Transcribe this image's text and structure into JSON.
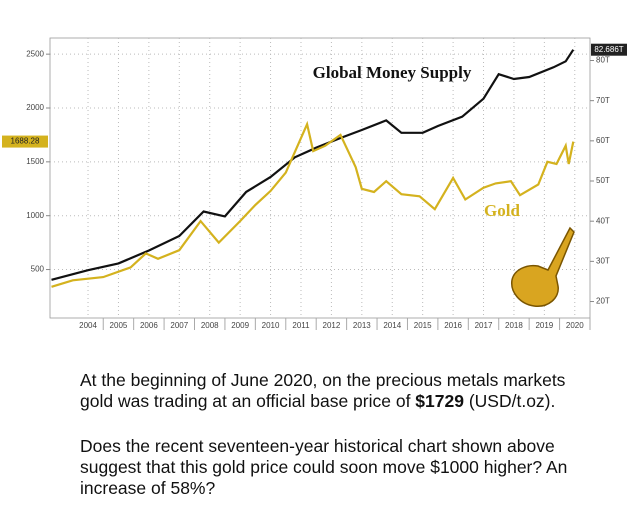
{
  "chart_data": {
    "type": "line",
    "x_ticks_note": null,
    "xlim": [
      2003.25,
      2021
    ],
    "xticks": [
      {
        "value": 2004.5,
        "label": "2004"
      },
      {
        "value": 2005.5,
        "label": "2005"
      },
      {
        "value": 2006.5,
        "label": "2006"
      },
      {
        "value": 2007.5,
        "label": "2007"
      },
      {
        "value": 2008.5,
        "label": "2008"
      },
      {
        "value": 2009.5,
        "label": "2009"
      },
      {
        "value": 2010.5,
        "label": "2010"
      },
      {
        "value": 2011.5,
        "label": "2011"
      },
      {
        "value": 2012.5,
        "label": "2012"
      },
      {
        "value": 2013.5,
        "label": "2013"
      },
      {
        "value": 2014.5,
        "label": "2014"
      },
      {
        "value": 2015.5,
        "label": "2015"
      },
      {
        "value": 2016.5,
        "label": "2016"
      },
      {
        "value": 2017.5,
        "label": "2017"
      },
      {
        "value": 2018.5,
        "label": "2018"
      },
      {
        "value": 2019.5,
        "label": "2019"
      },
      {
        "value": 2020.5,
        "label": "2020"
      }
    ],
    "ylim": [
      50,
      2650
    ],
    "yticks": [
      500,
      1000,
      1500,
      2000,
      2500
    ],
    "y2lim": [
      15.9,
      85.6
    ],
    "y2ticks": [
      {
        "value": 20,
        "label": "20T"
      },
      {
        "value": 30,
        "label": "30T"
      },
      {
        "value": 40,
        "label": "40T"
      },
      {
        "value": 50,
        "label": "50T"
      },
      {
        "value": 60,
        "label": "60T"
      },
      {
        "value": 70,
        "label": "70T"
      },
      {
        "value": 80,
        "label": "80T"
      }
    ],
    "grid": true,
    "series": [
      {
        "name": "Global Money Supply",
        "color": "#111111",
        "axis": "y2",
        "x": [
          2003.3,
          2004.5,
          2005.5,
          2006.5,
          2007.5,
          2008.3,
          2009,
          2009.7,
          2010.5,
          2011.3,
          2012,
          2012.8,
          2013.5,
          2014.3,
          2014.8,
          2015.5,
          2016,
          2016.8,
          2017.5,
          2018,
          2018.5,
          2019,
          2019.8,
          2020.2,
          2020.45
        ],
        "values": [
          25.4,
          27.8,
          29.5,
          32.7,
          36.3,
          42.4,
          41.2,
          47.3,
          51,
          55.9,
          58.3,
          60.7,
          62.7,
          65.1,
          62,
          62,
          63.7,
          66,
          70.5,
          76.6,
          75.4,
          75.9,
          78.3,
          79.8,
          82.686
        ],
        "current": {
          "value": 82.686,
          "label": "82.686T"
        }
      },
      {
        "name": "Gold",
        "color": "#d4b21e",
        "x": [
          2003.3,
          2004,
          2005,
          2005.9,
          2006.4,
          2006.8,
          2007.5,
          2008.2,
          2008.8,
          2009.5,
          2010,
          2010.5,
          2011,
          2011.7,
          2011.9,
          2012.3,
          2012.8,
          2013.3,
          2013.5,
          2013.9,
          2014.3,
          2014.8,
          2015.4,
          2015.9,
          2016.5,
          2016.9,
          2017.5,
          2017.9,
          2018.4,
          2018.7,
          2019.3,
          2019.6,
          2019.9,
          2020.2,
          2020.3,
          2020.45
        ],
        "values": [
          340,
          400,
          430,
          520,
          650,
          600,
          680,
          950,
          750,
          950,
          1100,
          1230,
          1400,
          1850,
          1600,
          1650,
          1750,
          1450,
          1250,
          1220,
          1320,
          1200,
          1180,
          1060,
          1350,
          1150,
          1260,
          1300,
          1320,
          1190,
          1290,
          1500,
          1480,
          1650,
          1480,
          1688.28
        ],
        "current": {
          "value": 1688.28,
          "label": "1688.28"
        }
      }
    ]
  },
  "caption": {
    "p1_before": "At the beginning of June 2020, on the precious metals markets gold was trading at an official base price of ",
    "p1_bold": "$1729",
    "p1_after": " (USD/t.oz).",
    "p2": "Does the recent seventeen-year historical chart shown above suggest that this gold price could soon move $1000 higher? An increase of 58%?"
  }
}
